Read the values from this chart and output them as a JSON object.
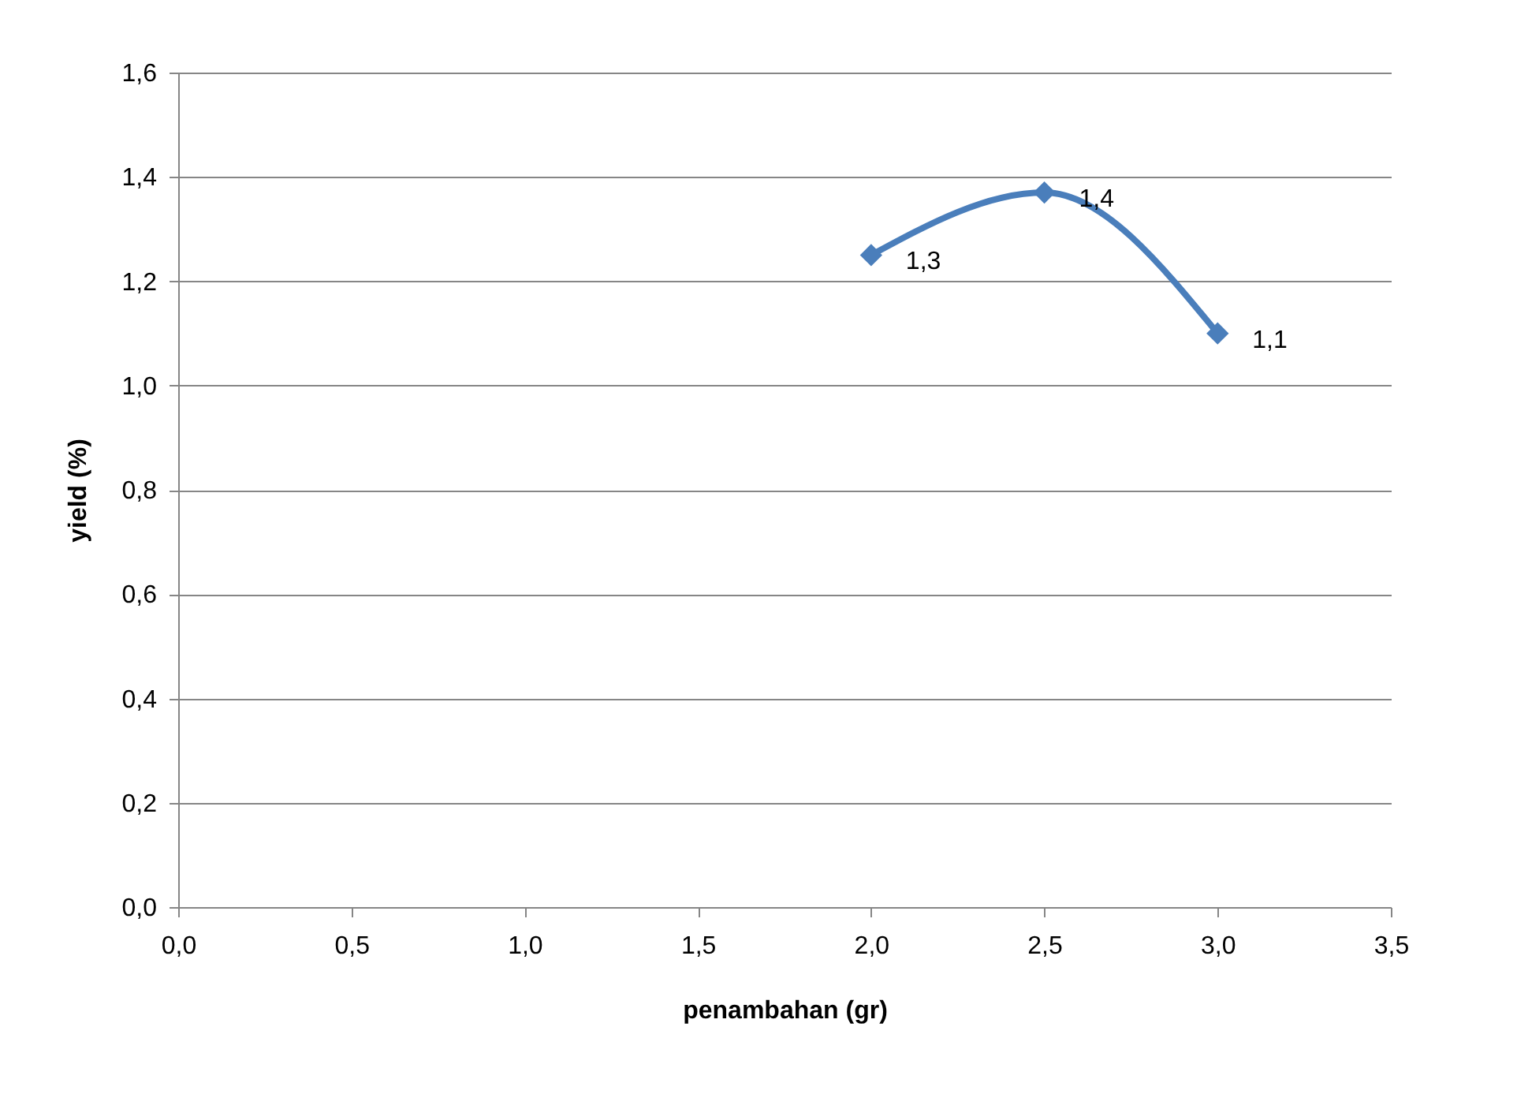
{
  "chart_data": {
    "type": "line",
    "xlabel": "penambahan (gr)",
    "ylabel": "yield (%)",
    "x": [
      2.0,
      2.5,
      3.0
    ],
    "series": [
      {
        "color": "#4a7ebb",
        "values": [
          1.25,
          1.37,
          1.1
        ],
        "value_labels": [
          "1,3",
          "1,4",
          "1,1"
        ]
      }
    ],
    "xlim": [
      0,
      3.5
    ],
    "xticks": [
      {
        "value": 0,
        "label": "0,0"
      },
      {
        "value": 0.5,
        "label": "0,5"
      },
      {
        "value": 1,
        "label": "1,0"
      },
      {
        "value": 1.5,
        "label": "1,5"
      },
      {
        "value": 2,
        "label": "2,0"
      },
      {
        "value": 2.5,
        "label": "2,5"
      },
      {
        "value": 3,
        "label": "3,0"
      },
      {
        "value": 3.5,
        "label": "3,5"
      }
    ],
    "ylim": [
      0,
      1.6
    ],
    "yticks": [
      {
        "value": 0,
        "label": "0,0"
      },
      {
        "value": 0.2,
        "label": "0,2"
      },
      {
        "value": 0.4,
        "label": "0,4"
      },
      {
        "value": 0.6,
        "label": "0,6"
      },
      {
        "value": 0.8,
        "label": "0,8"
      },
      {
        "value": 1.0,
        "label": "1,0"
      },
      {
        "value": 1.2,
        "label": "1,2"
      },
      {
        "value": 1.4,
        "label": "1,4"
      },
      {
        "value": 1.6,
        "label": "1,6"
      }
    ],
    "grid": "y",
    "marker": "diamond",
    "line_style": "solid"
  }
}
